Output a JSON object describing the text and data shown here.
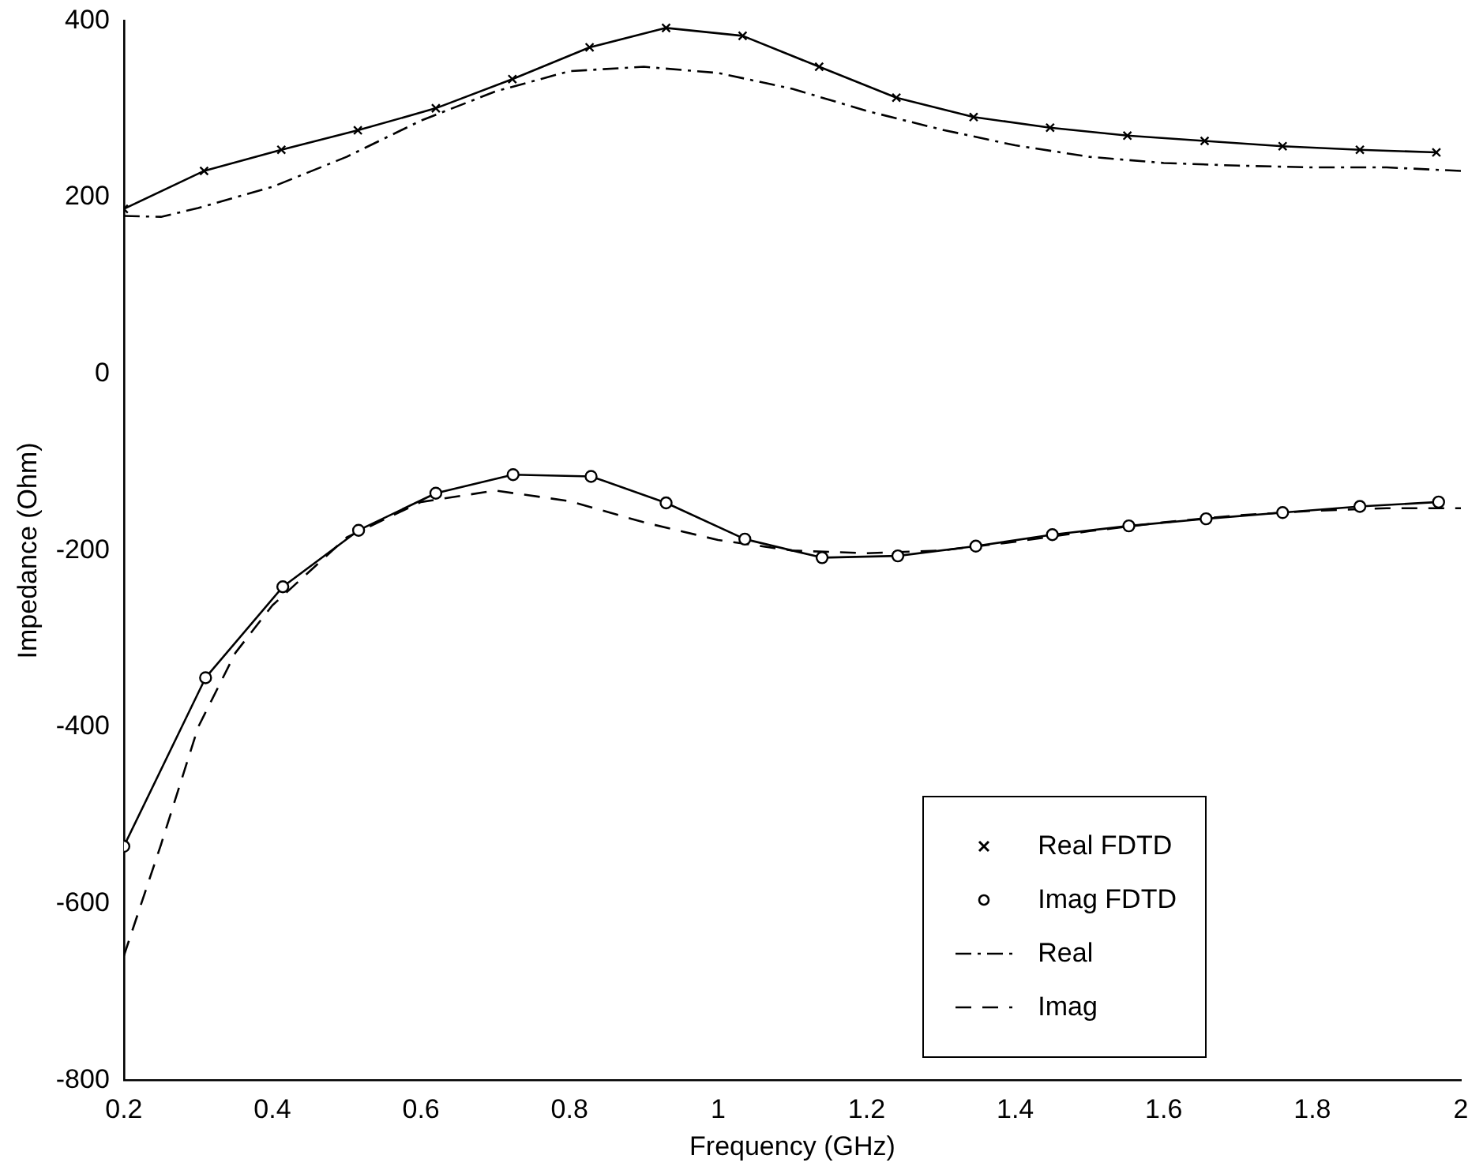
{
  "chart_data": {
    "type": "line",
    "xlabel": "Frequency (GHz)",
    "ylabel": "Impedance (Ohm)",
    "xlim": [
      0.2,
      2
    ],
    "xticks": [
      0.2,
      0.4,
      0.6,
      0.8,
      1,
      1.2,
      1.4,
      1.6,
      1.8,
      2
    ],
    "ylim": [
      -800,
      400
    ],
    "yticks": [
      -800,
      -600,
      -400,
      -200,
      0,
      200,
      400
    ],
    "grid": false,
    "legend": "bottom right",
    "series": [
      {
        "name": "Real FDTD",
        "color": "#000000",
        "marker": "cross",
        "line_style": "solid",
        "x": [
          0.2,
          0.308,
          0.412,
          0.515,
          0.62,
          0.723,
          0.827,
          0.93,
          1.033,
          1.136,
          1.24,
          1.344,
          1.447,
          1.551,
          1.655,
          1.76,
          1.864,
          1.967
        ],
        "values": [
          187,
          230,
          254,
          276,
          301,
          334,
          370,
          392,
          383,
          348,
          313,
          291,
          279,
          270,
          264,
          258,
          254,
          251
        ]
      },
      {
        "name": "Imag FDTD",
        "color": "#000000",
        "marker": "circle",
        "line_style": "solid",
        "x": [
          0.2,
          0.31,
          0.414,
          0.516,
          0.62,
          0.724,
          0.829,
          0.93,
          1.036,
          1.14,
          1.242,
          1.347,
          1.45,
          1.553,
          1.657,
          1.76,
          1.864,
          1.97
        ],
        "values": [
          -535,
          -344,
          -241,
          -177,
          -135,
          -114,
          -116,
          -146,
          -187,
          -208,
          -206,
          -195,
          -182,
          -172,
          -164,
          -157,
          -150,
          -145
        ]
      },
      {
        "name": "Real",
        "color": "#000000",
        "marker": "none",
        "line_style": "dashdot",
        "x": [
          0.2,
          0.25,
          0.3,
          0.4,
          0.5,
          0.6,
          0.7,
          0.8,
          0.9,
          1.0,
          1.1,
          1.2,
          1.3,
          1.4,
          1.5,
          1.6,
          1.7,
          1.8,
          1.9,
          2.0
        ],
        "values": [
          179,
          178,
          188,
          212,
          246,
          287,
          320,
          343,
          348,
          341,
          323,
          298,
          277,
          259,
          246,
          239,
          236,
          234,
          234,
          230
        ]
      },
      {
        "name": "Imag",
        "color": "#000000",
        "marker": "none",
        "line_style": "dashed",
        "x": [
          0.2,
          0.25,
          0.3,
          0.35,
          0.4,
          0.5,
          0.6,
          0.7,
          0.8,
          0.9,
          1.0,
          1.1,
          1.2,
          1.3,
          1.4,
          1.5,
          1.6,
          1.7,
          1.8,
          1.9,
          2.0
        ],
        "values": [
          -659,
          -533,
          -400,
          -316,
          -262,
          -185,
          -145,
          -132,
          -144,
          -168,
          -188,
          -200,
          -203,
          -200,
          -190,
          -178,
          -168,
          -160,
          -155,
          -152,
          -152
        ]
      }
    ]
  }
}
